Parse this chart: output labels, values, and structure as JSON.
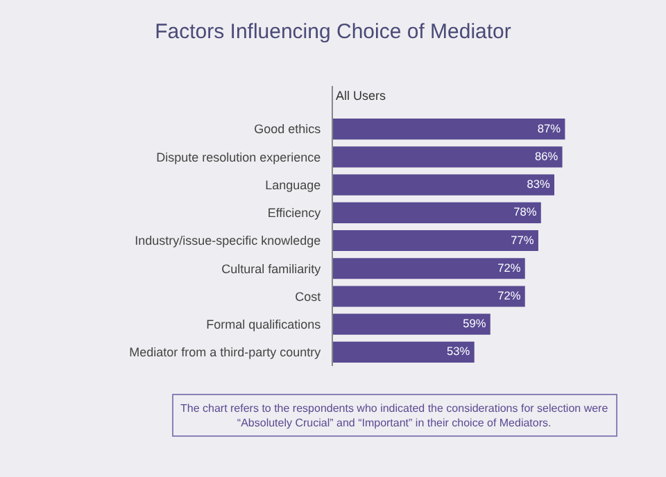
{
  "chart_data": {
    "type": "bar",
    "orientation": "horizontal",
    "title": "Factors Influencing Choice of Mediator",
    "subtitle": "All Users",
    "categories": [
      "Good ethics",
      "Dispute resolution experience",
      "Language",
      "Efficiency",
      "Industry/issue-specific knowledge",
      "Cultural familiarity",
      "Cost",
      "Formal qualifications",
      "Mediator from a third-party country"
    ],
    "values": [
      87,
      86,
      83,
      78,
      77,
      72,
      72,
      59,
      53
    ],
    "value_labels": [
      "87%",
      "86%",
      "83%",
      "78%",
      "77%",
      "72%",
      "72%",
      "59%",
      "53%"
    ],
    "color": "#594a92",
    "tick_labels": "y",
    "grid": false,
    "legend": false,
    "annotations": [
      "The chart refers to the respondents who indicated the considerations for selection were “Absolutely Crucial” and “Important” in their choice of Mediators."
    ]
  }
}
